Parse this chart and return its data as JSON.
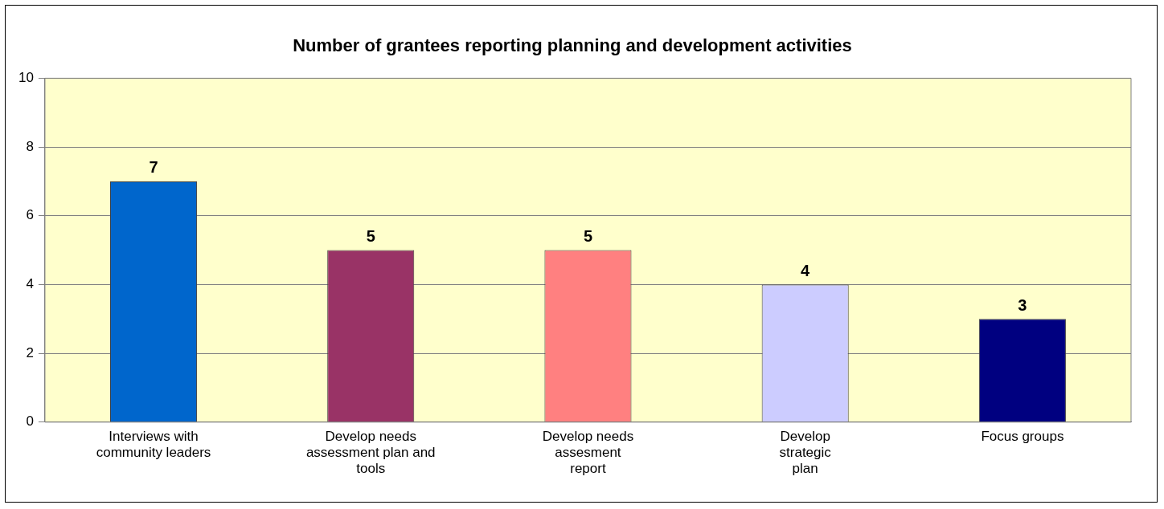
{
  "chart_data": {
    "type": "bar",
    "title": "Number of grantees reporting planning and development activities",
    "categories": [
      "Interviews with\ncommunity leaders",
      "Develop needs\nassessment plan and\ntools",
      "Develop needs\nassesment\nreport",
      "Develop\nstrategic\nplan",
      "Focus groups"
    ],
    "values": [
      7,
      5,
      5,
      4,
      3
    ],
    "colors": [
      "#0066cc",
      "#993366",
      "#ff8080",
      "#ccccff",
      "#000080"
    ],
    "ylim": [
      0,
      10
    ],
    "yticks": [
      0,
      2,
      4,
      6,
      8,
      10
    ],
    "grid": "y",
    "data_labels": true,
    "legend": false
  }
}
